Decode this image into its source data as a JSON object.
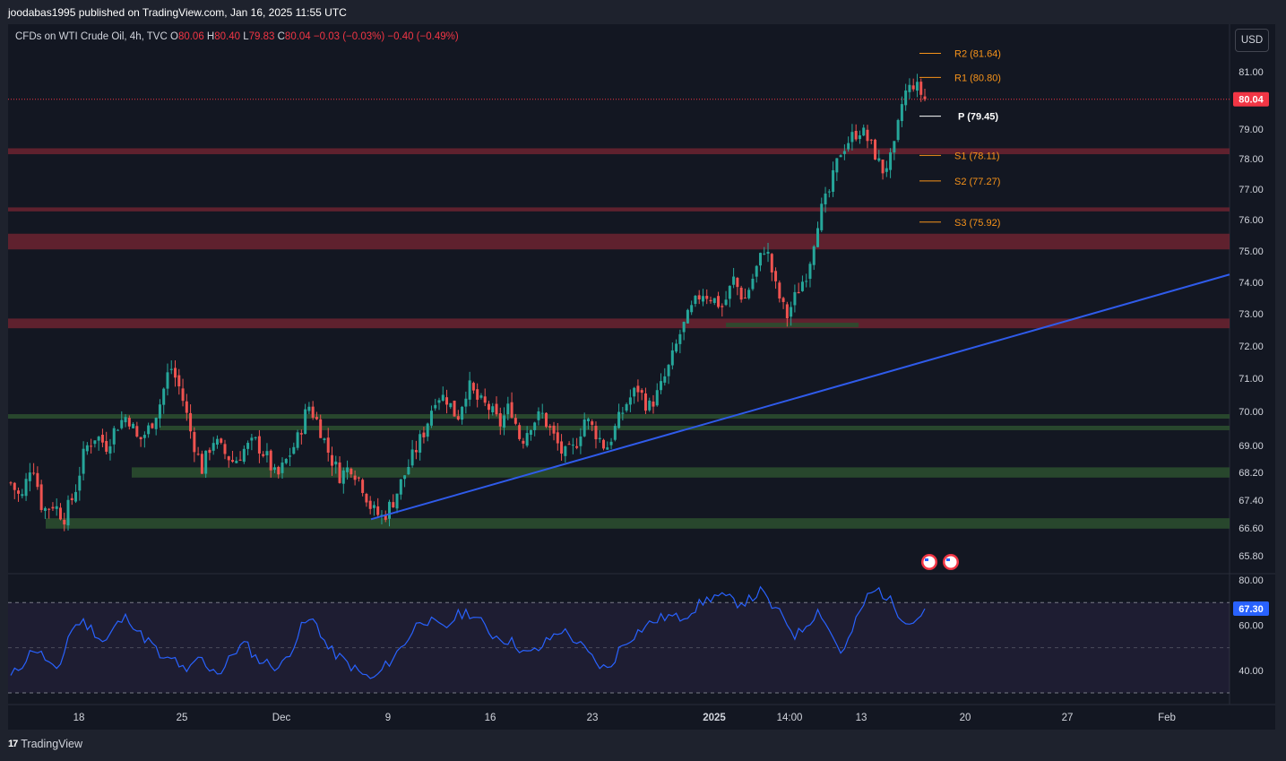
{
  "publish_line": "joodabas1995 published on TradingView.com, Jan 16, 2025 11:55 UTC",
  "legend": {
    "symbol": "CFDs on WTI Crude Oil, 4h, TVC",
    "o_label": "O",
    "o_value": "80.06",
    "h_label": "H",
    "h_value": "80.40",
    "l_label": "L",
    "l_value": "79.83",
    "c_label": "C",
    "c_value": "80.04",
    "change": "−0.03 (−0.03%)",
    "change2": "−0.40 (−0.49%)"
  },
  "currency_button": "USD",
  "footer_brand": "TradingView",
  "colors": {
    "bg": "#131722",
    "up": "#26a69a",
    "down": "#ef5350",
    "resistance_zone": "#6d2330",
    "support_zone": "#2b4d2f",
    "trendline": "#2f5bea",
    "pivot_orange": "#f7931a",
    "rsi_line": "#2962ff",
    "price_tag": "#f23645"
  },
  "chart_data": [
    {
      "type": "candlestick",
      "y_ticks": [
        "81.00",
        "79.00",
        "78.00",
        "77.00",
        "76.00",
        "75.00",
        "74.00",
        "73.00",
        "72.00",
        "71.00",
        "70.00",
        "69.00",
        "68.20",
        "67.40",
        "66.60",
        "65.80"
      ],
      "y_tick_values": [
        81.0,
        79.0,
        78.0,
        77.0,
        76.0,
        75.0,
        74.0,
        73.0,
        72.0,
        71.0,
        70.0,
        69.0,
        68.2,
        67.4,
        66.6,
        65.8
      ],
      "x_ticks": [
        "18",
        "25",
        "Dec",
        "9",
        "16",
        "23",
        "2025",
        "14:00",
        "13",
        "20",
        "27",
        "Feb"
      ],
      "last_price_label": "80.04",
      "last_price": 80.04,
      "pivot_levels": [
        {
          "label": "R2 (81.64)",
          "value": 81.64
        },
        {
          "label": "R1 (80.80)",
          "value": 80.8
        },
        {
          "label": "P (79.45)",
          "value": 79.45
        },
        {
          "label": "S1 (78.11)",
          "value": 78.11
        },
        {
          "label": "S2 (77.27)",
          "value": 77.27
        },
        {
          "label": "S3 (75.92)",
          "value": 75.92
        }
      ],
      "resistance_zones": [
        {
          "from": 78.15,
          "to": 78.35
        },
        {
          "from": 76.27,
          "to": 76.4
        },
        {
          "from": 75.05,
          "to": 75.55
        },
        {
          "from": 72.55,
          "to": 72.85
        }
      ],
      "support_zones": [
        {
          "from": 72.58,
          "to": 72.72,
          "start": "Jan 1",
          "end": "Jan 12"
        },
        {
          "from": 69.8,
          "to": 69.92
        },
        {
          "from": 69.45,
          "to": 69.58
        },
        {
          "from": 68.05,
          "to": 68.35
        },
        {
          "from": 66.58,
          "to": 66.88
        }
      ],
      "trendline": {
        "start": {
          "date": "Dec 8",
          "price": 66.85
        },
        "end": {
          "date": "Feb 3",
          "price": 74.25
        }
      },
      "candles_shape": [
        67.9,
        67.4,
        68.6,
        67.1,
        67.3,
        66.9,
        67.6,
        68.9,
        69.3,
        69.0,
        69.6,
        69.9,
        69.1,
        69.5,
        70.2,
        71.4,
        70.6,
        69.3,
        68.3,
        69.2,
        68.8,
        68.5,
        68.9,
        69.1,
        68.7,
        68.0,
        68.6,
        69.2,
        70.2,
        69.6,
        68.7,
        68.1,
        68.4,
        67.9,
        67.1,
        66.9,
        67.4,
        68.1,
        68.8,
        69.5,
        70.5,
        70.4,
        69.8,
        70.8,
        70.3,
        70.1,
        69.6,
        70.2,
        69.1,
        69.7,
        69.9,
        69.3,
        68.7,
        68.9,
        69.8,
        69.4,
        68.9,
        69.6,
        70.3,
        70.7,
        70.1,
        70.6,
        71.4,
        72.4,
        73.1,
        73.7,
        73.5,
        73.2,
        74.1,
        73.4,
        74.3,
        75.2,
        73.8,
        72.9,
        73.7,
        74.4,
        76.1,
        76.9,
        78.2,
        78.7,
        79.0,
        78.4,
        77.6,
        78.1,
        80.2,
        80.6,
        80.04
      ],
      "rsi": {
        "label": "67.30",
        "value": 67.3,
        "y_ticks": [
          "80.00",
          "60.00",
          "40.00"
        ],
        "y_tick_values": [
          80,
          60,
          40
        ],
        "upper_band": 70,
        "middle": 50,
        "lower_band": 30,
        "series_shape": [
          37,
          43,
          50,
          45,
          38,
          57,
          62,
          58,
          52,
          60,
          64,
          56,
          52,
          44,
          45,
          38,
          46,
          41,
          39,
          48,
          52,
          45,
          43,
          41,
          50,
          61,
          62,
          50,
          46,
          42,
          38,
          36,
          42,
          48,
          55,
          63,
          61,
          58,
          64,
          66,
          62,
          56,
          54,
          52,
          47,
          49,
          54,
          58,
          54,
          49,
          43,
          40,
          50,
          55,
          59,
          62,
          64,
          63,
          66,
          70,
          73,
          72,
          70,
          71,
          75,
          68,
          63,
          55,
          61,
          67,
          56,
          47,
          60,
          72,
          76,
          71,
          64,
          61,
          67.3
        ]
      }
    }
  ]
}
